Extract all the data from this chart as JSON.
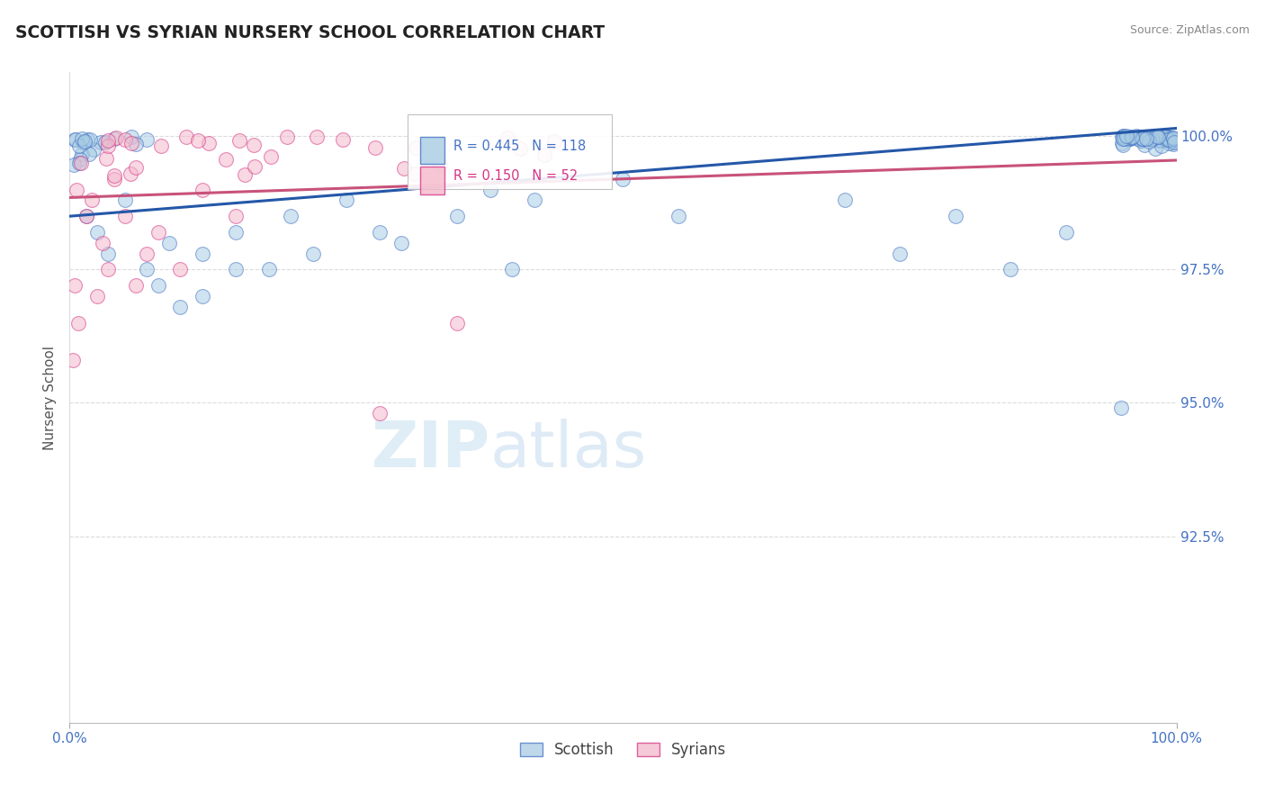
{
  "title": "SCOTTISH VS SYRIAN NURSERY SCHOOL CORRELATION CHART",
  "source": "Source: ZipAtlas.com",
  "ylabel": "Nursery School",
  "xlim": [
    0.0,
    100.0
  ],
  "ylim": [
    89.0,
    101.2
  ],
  "yticks": [
    92.5,
    95.0,
    97.5,
    100.0
  ],
  "scottish_color": "#a8cce4",
  "scottish_edge_color": "#4472c4",
  "syrians_color": "#f4b8cb",
  "syrians_edge_color": "#d63384",
  "scottish_line_color": "#2457a8",
  "syrians_line_color": "#c8527a",
  "background_color": "#ffffff",
  "title_color": "#222222",
  "tick_color": "#4472c4",
  "ylabel_color": "#555555",
  "source_color": "#888888",
  "watermark_color": "#daeaf5",
  "grid_color": "#cccccc",
  "legend_R_scottish": "0.445",
  "legend_N_scottish": "118",
  "legend_R_syrians": "0.150",
  "legend_N_syrians": "52",
  "scot_line_x0": 0,
  "scot_line_y0": 98.5,
  "scot_line_x1": 100,
  "scot_line_y1": 100.15,
  "syr_line_x0": 0,
  "syr_line_y0": 98.85,
  "syr_line_x1": 100,
  "syr_line_y1": 99.55
}
